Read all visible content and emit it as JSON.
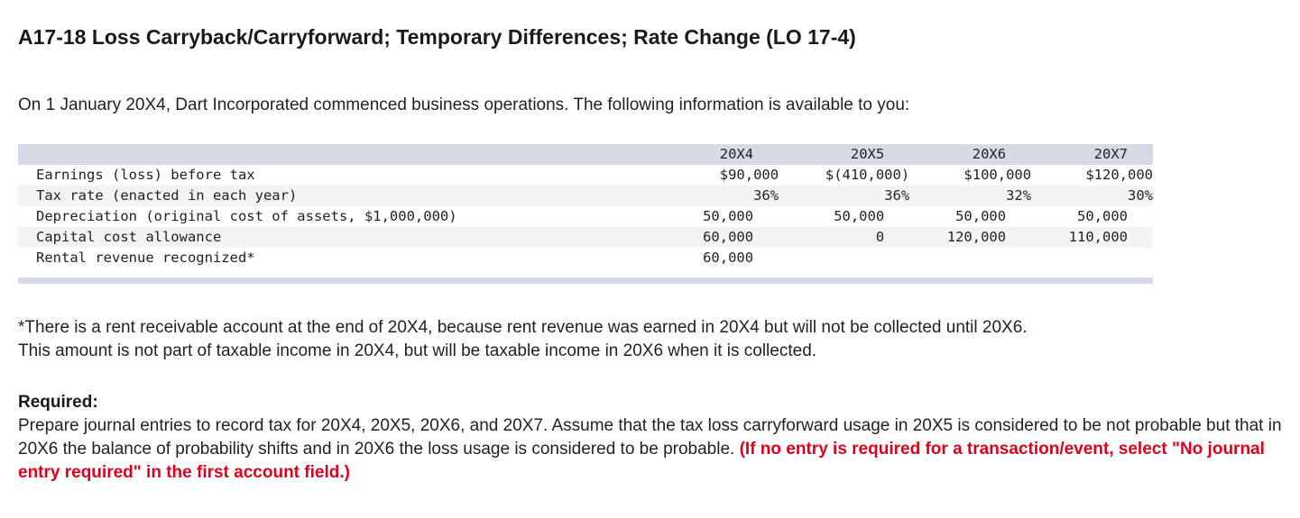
{
  "title": "A17-18 Loss Carryback/Carryforward; Temporary Differences; Rate Change (LO 17-4)",
  "intro": "On 1 January 20X4, Dart Incorporated commenced business operations. The following information is available to you:",
  "table": {
    "columns": [
      "20X4",
      "20X5",
      "20X6",
      "20X7"
    ],
    "rows": [
      {
        "label": "Earnings (loss) before tax",
        "values": [
          "$90,000",
          "$(410,000)",
          "$100,000",
          "$120,000"
        ]
      },
      {
        "label": "Tax rate (enacted in each year)",
        "values": [
          "36%",
          "36%",
          "32%",
          "30%"
        ]
      },
      {
        "label": "Depreciation (original cost of assets, $1,000,000)",
        "values": [
          "50,000",
          "50,000",
          "50,000",
          "50,000"
        ]
      },
      {
        "label": "Capital cost allowance",
        "values": [
          "60,000",
          "0",
          "120,000",
          "110,000"
        ]
      },
      {
        "label": "Rental revenue recognized*",
        "values": [
          "60,000",
          "",
          "",
          ""
        ]
      }
    ]
  },
  "footnote": {
    "line1": "*There is a rent receivable account at the end of 20X4, because rent revenue was earned in 20X4 but will not be collected until 20X6.",
    "line2": "This amount is not part of taxable income in 20X4, but will be taxable income in 20X6 when it is collected."
  },
  "required": {
    "heading": "Required:",
    "body": "Prepare journal entries to record tax for 20X4, 20X5, 20X6, and 20X7. Assume that the tax loss carryforward usage in 20X5 is considered to be not probable but that in 20X6 the balance of probability shifts and in 20X6 the loss usage is considered to be probable.",
    "instruction": "(If no entry is required for a transaction/event, select \"No journal entry required\" in the first account field.)"
  }
}
